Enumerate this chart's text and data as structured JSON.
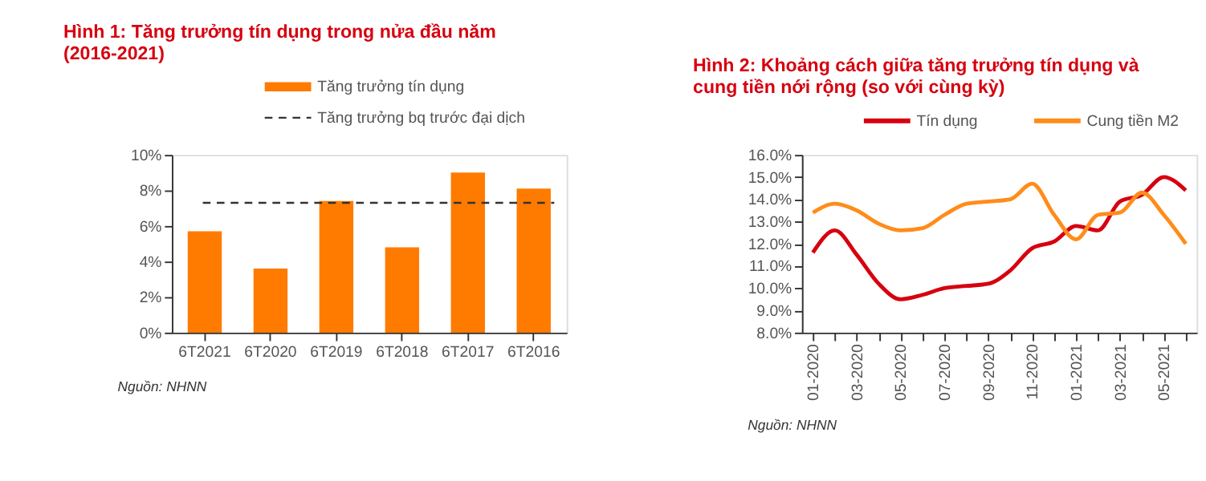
{
  "chart_data": [
    {
      "type": "bar",
      "title": "Hình 1: Tăng trưởng tín dụng trong nửa đầu năm (2016-2021)",
      "categories": [
        "6T2021",
        "6T2020",
        "6T2019",
        "6T2018",
        "6T2017",
        "6T2016"
      ],
      "series": [
        {
          "name": "Tăng trưởng tín dụng",
          "color": "#ff7b00",
          "values": [
            5.7,
            3.6,
            7.4,
            4.8,
            9.0,
            8.1
          ]
        }
      ],
      "ref_lines": [
        {
          "axis": "y",
          "value": 7.3,
          "label": "Tăng trưởng bq trước đại dịch",
          "color": "#333333",
          "line_style": "dashed"
        }
      ],
      "ylim": [
        0,
        10
      ],
      "yticks": [
        {
          "value": 0,
          "label": "0%"
        },
        {
          "value": 2,
          "label": "2%"
        },
        {
          "value": 4,
          "label": "4%"
        },
        {
          "value": 6,
          "label": "6%"
        },
        {
          "value": 8,
          "label": "8%"
        },
        {
          "value": 10,
          "label": "10%"
        }
      ],
      "grid": false,
      "legend": "top",
      "annotations": [
        "Nguồn: NHNN"
      ]
    },
    {
      "type": "line",
      "title": "Hình 2: Khoảng cách giữa tăng trưởng tín dụng và cung tiền nới rộng (so với cùng kỳ)",
      "categories": [
        "01-2020",
        null,
        "03-2020",
        null,
        "05-2020",
        null,
        "07-2020",
        null,
        "09-2020",
        null,
        "11-2020",
        null,
        "01-2021",
        null,
        "03-2021",
        null,
        "05-2021",
        null
      ],
      "series": [
        {
          "name": "Tín dụng",
          "color": "#d7000f",
          "values": [
            11.6,
            12.6,
            11.5,
            10.2,
            9.5,
            9.7,
            10.0,
            10.1,
            10.2,
            10.8,
            11.8,
            12.1,
            12.8,
            12.6,
            13.9,
            14.2,
            15.0,
            14.4
          ]
        },
        {
          "name": "Cung tiền M2",
          "color": "#ff8c1a",
          "values": [
            13.4,
            13.8,
            13.5,
            12.9,
            12.6,
            12.7,
            13.3,
            13.8,
            13.9,
            14.0,
            14.7,
            13.3,
            12.2,
            13.3,
            13.4,
            14.3,
            13.3,
            12.0
          ]
        }
      ],
      "ylim": [
        8,
        16
      ],
      "yticks": [
        {
          "value": 8,
          "label": "8.0%"
        },
        {
          "value": 9,
          "label": "9.0%"
        },
        {
          "value": 10,
          "label": "10.0%"
        },
        {
          "value": 11,
          "label": "11.0%"
        },
        {
          "value": 12,
          "label": "12.0%"
        },
        {
          "value": 13,
          "label": "13.0%"
        },
        {
          "value": 14,
          "label": "14.0%"
        },
        {
          "value": 15,
          "label": "15.0%"
        },
        {
          "value": 16,
          "label": "16.0%"
        }
      ],
      "grid": false,
      "legend": "top",
      "line_style": "solid",
      "marker": "none",
      "annotations": [
        "Nguồn: NHNN"
      ]
    }
  ]
}
